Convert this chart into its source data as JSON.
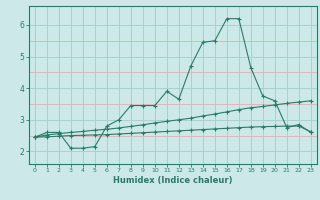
{
  "xlabel": "Humidex (Indice chaleur)",
  "ylabel": "",
  "bg_color": "#cce8e8",
  "grid_color_major": "#aad0d0",
  "grid_color_minor_y": "#e0b8b8",
  "line_color": "#2a7a6a",
  "xlim": [
    -0.5,
    23.5
  ],
  "ylim": [
    1.6,
    6.6
  ],
  "xticks": [
    0,
    1,
    2,
    3,
    4,
    5,
    6,
    7,
    8,
    9,
    10,
    11,
    12,
    13,
    14,
    15,
    16,
    17,
    18,
    19,
    20,
    21,
    22,
    23
  ],
  "yticks": [
    2,
    3,
    4,
    5,
    6
  ],
  "yticks_minor": [
    2.5,
    3.5,
    4.5,
    5.5
  ],
  "line1_x": [
    0,
    1,
    2,
    3,
    4,
    5,
    6,
    7,
    8,
    9,
    10,
    11,
    12,
    13,
    14,
    15,
    16,
    17,
    18,
    19,
    20,
    21,
    22,
    23
  ],
  "line1_y": [
    2.45,
    2.6,
    2.6,
    2.1,
    2.1,
    2.15,
    2.8,
    3.0,
    3.45,
    3.45,
    3.45,
    3.9,
    3.65,
    4.7,
    5.45,
    5.5,
    6.2,
    6.2,
    4.65,
    3.75,
    3.6,
    2.75,
    2.85,
    2.6
  ],
  "line2_x": [
    0,
    1,
    2,
    3,
    4,
    5,
    6,
    7,
    8,
    9,
    10,
    11,
    12,
    13,
    14,
    15,
    16,
    17,
    18,
    19,
    20,
    21,
    22,
    23
  ],
  "line2_y": [
    2.45,
    2.52,
    2.56,
    2.6,
    2.63,
    2.67,
    2.7,
    2.74,
    2.79,
    2.84,
    2.9,
    2.95,
    3.0,
    3.05,
    3.12,
    3.18,
    3.25,
    3.32,
    3.38,
    3.42,
    3.47,
    3.52,
    3.56,
    3.6
  ],
  "line3_x": [
    0,
    1,
    2,
    3,
    4,
    5,
    6,
    7,
    8,
    9,
    10,
    11,
    12,
    13,
    14,
    15,
    16,
    17,
    18,
    19,
    20,
    21,
    22,
    23
  ],
  "line3_y": [
    2.45,
    2.46,
    2.48,
    2.5,
    2.51,
    2.52,
    2.53,
    2.55,
    2.57,
    2.59,
    2.61,
    2.63,
    2.65,
    2.67,
    2.69,
    2.71,
    2.73,
    2.75,
    2.77,
    2.78,
    2.79,
    2.8,
    2.8,
    2.62
  ]
}
